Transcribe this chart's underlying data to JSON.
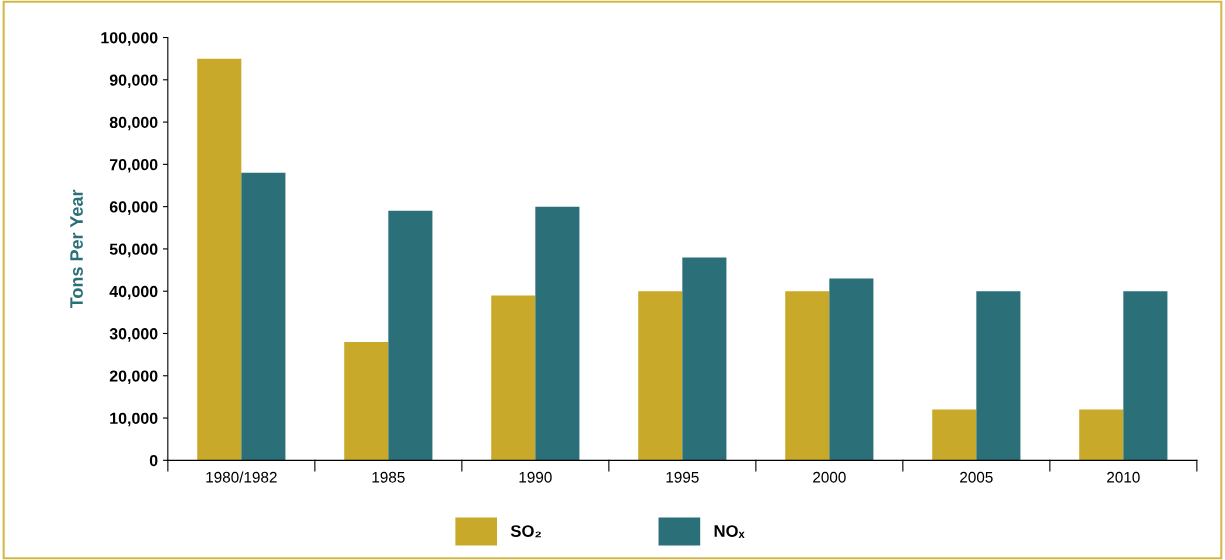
{
  "chart_data": {
    "type": "bar",
    "ylabel": "Tons Per Year",
    "categories": [
      "1980/1982",
      "1985",
      "1990",
      "1995",
      "2000",
      "2005",
      "2010"
    ],
    "series": [
      {
        "name": "SO₂",
        "color": "#c9a92a",
        "values": [
          95000,
          28000,
          39000,
          40000,
          40000,
          12000,
          12000
        ]
      },
      {
        "name": "NOₓ",
        "color": "#2b6f78",
        "values": [
          68000,
          59000,
          60000,
          48000,
          43000,
          40000,
          40000
        ]
      }
    ],
    "ylim": [
      0,
      100000
    ],
    "yticks": [
      {
        "value": 0,
        "label": "0"
      },
      {
        "value": 10000,
        "label": "10,000"
      },
      {
        "value": 20000,
        "label": "20,000"
      },
      {
        "value": 30000,
        "label": "30,000"
      },
      {
        "value": 40000,
        "label": "40,000"
      },
      {
        "value": 50000,
        "label": "50,000"
      },
      {
        "value": 60000,
        "label": "60,000"
      },
      {
        "value": 70000,
        "label": "70,000"
      },
      {
        "value": 80000,
        "label": "80,000"
      },
      {
        "value": 90000,
        "label": "90,000"
      },
      {
        "value": 100000,
        "label": "100,000"
      }
    ],
    "grid": false,
    "legend": "bottom"
  }
}
